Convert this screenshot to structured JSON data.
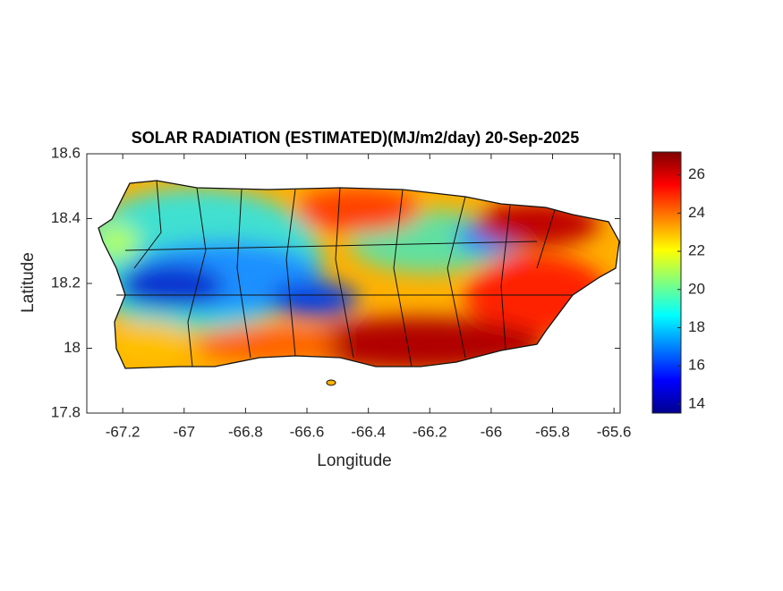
{
  "chart_data": {
    "type": "map",
    "title": "SOLAR RADIATION (ESTIMATED)(MJ/m2/day) 20-Sep-2025",
    "xlabel": "Longitude",
    "ylabel": "Latitude",
    "xlim": [
      -67.317,
      -65.58
    ],
    "ylim": [
      17.8,
      18.6
    ],
    "xticks": [
      -67.2,
      -67,
      -66.8,
      -66.6,
      -66.4,
      -66.2,
      -66,
      -65.8,
      -65.6
    ],
    "yticks": [
      17.8,
      18,
      18.2,
      18.4,
      18.6
    ],
    "colormap": "jet",
    "clim": [
      13.53,
      27.2
    ],
    "cticks": [
      14,
      16,
      18,
      20,
      22,
      24,
      26
    ]
  }
}
